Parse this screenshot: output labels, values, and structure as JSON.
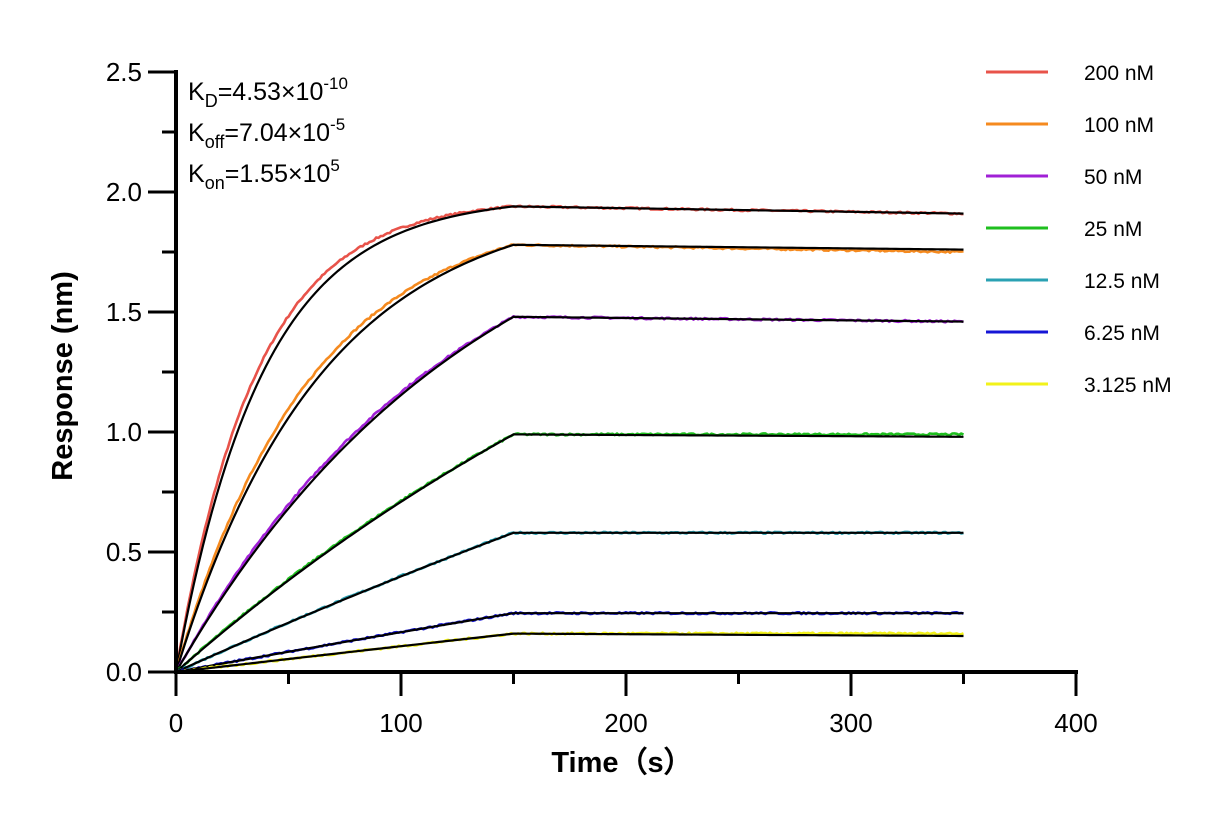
{
  "chart_data": {
    "type": "line",
    "title": "",
    "xlabel": "Time（s）",
    "ylabel": "Response (nm)",
    "xlim": [
      0,
      400
    ],
    "ylim": [
      0,
      2.5
    ],
    "xticks": [
      "0",
      "100",
      "200",
      "300",
      "400"
    ],
    "yticks": [
      "0.0",
      "0.5",
      "1.0",
      "1.5",
      "2.0",
      "2.5"
    ],
    "grid": false,
    "legend_position": "right",
    "association_end": 150,
    "x_end": 350,
    "kinetics": {
      "KD": {
        "base": "K",
        "sub": "D",
        "value": "=4.53×10",
        "exp": "-10"
      },
      "Koff": {
        "base": "K",
        "sub": "off",
        "value": "=7.04×10",
        "exp": "-5"
      },
      "Kon": {
        "base": "K",
        "sub": "on",
        "value": "=1.55×10",
        "exp": "5"
      }
    },
    "fit_color": "#000000",
    "series": [
      {
        "name": "200 nM",
        "color": "#e8534a",
        "plateau": 1.94,
        "end": 1.91,
        "fit_end": 1.91,
        "curvature": 4.2
      },
      {
        "name": "100 nM",
        "color": "#f58a1f",
        "plateau": 1.78,
        "end": 1.75,
        "fit_end": 1.76,
        "curvature": 2.5
      },
      {
        "name": "50 nM",
        "color": "#a020d6",
        "plateau": 1.48,
        "end": 1.46,
        "fit_end": 1.46,
        "curvature": 1.2
      },
      {
        "name": "25 nM",
        "color": "#1fbf1f",
        "plateau": 0.99,
        "end": 0.99,
        "fit_end": 0.98,
        "curvature": 0.5
      },
      {
        "name": "12.5 nM",
        "color": "#2aa1b3",
        "plateau": 0.58,
        "end": 0.58,
        "fit_end": 0.58,
        "curvature": 0.2
      },
      {
        "name": "6.25 nM",
        "color": "#1515d6",
        "plateau": 0.245,
        "end": 0.245,
        "fit_end": 0.245,
        "curvature": 0.1
      },
      {
        "name": "3.125 nM",
        "color": "#f2f21a",
        "plateau": 0.16,
        "end": 0.16,
        "fit_end": 0.15,
        "curvature": 0.05
      }
    ]
  }
}
